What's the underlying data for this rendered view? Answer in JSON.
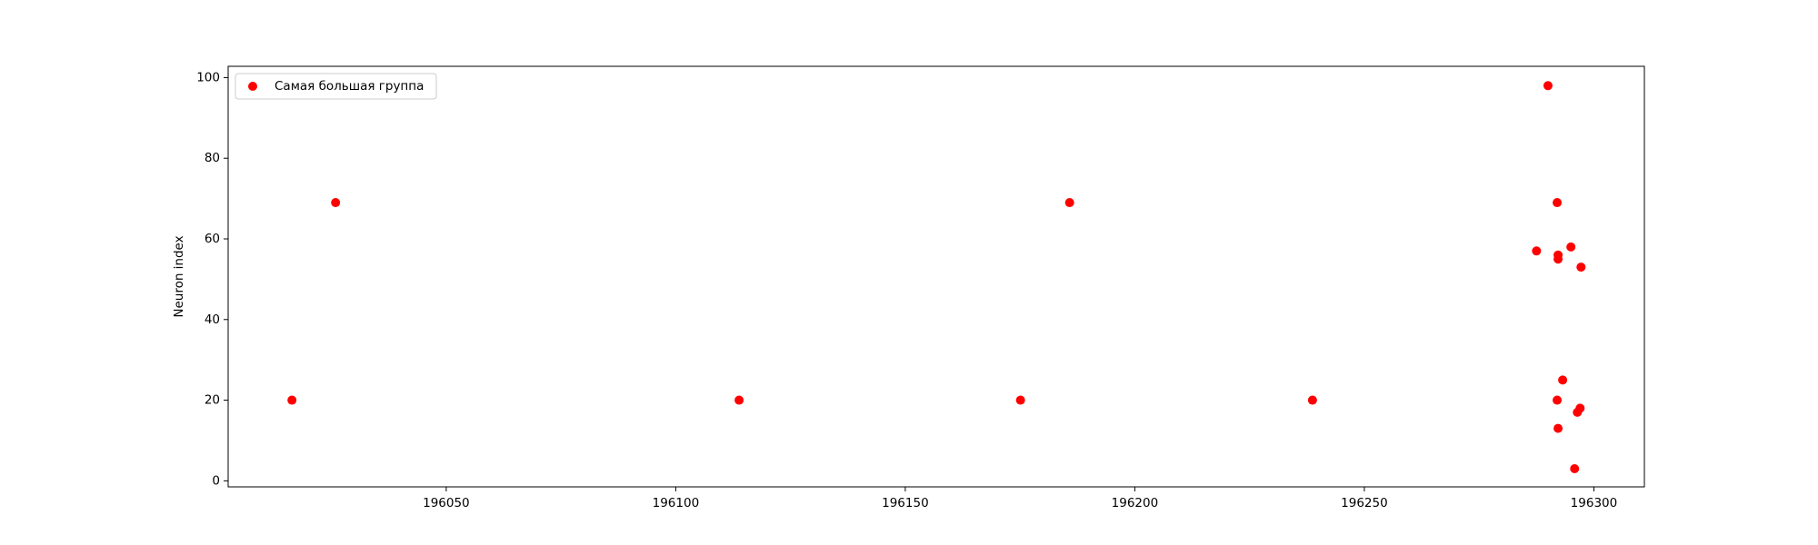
{
  "chart_data": {
    "type": "scatter",
    "title": "",
    "xlabel": "",
    "ylabel": "Neuron index",
    "xlim": [
      196002.5,
      196311
    ],
    "ylim": [
      -1.5,
      102.8
    ],
    "xticks": [
      196050,
      196100,
      196150,
      196200,
      196250,
      196300
    ],
    "yticks": [
      0,
      20,
      40,
      60,
      80,
      100
    ],
    "grid": false,
    "legend": {
      "placement": "top-left",
      "entries": [
        "Самая большая группа"
      ]
    },
    "series": [
      {
        "name": "Самая большая группа",
        "color": "#ff0000",
        "points": [
          {
            "x": 196016.4,
            "y": 20
          },
          {
            "x": 196025.9,
            "y": 69
          },
          {
            "x": 196113.8,
            "y": 20
          },
          {
            "x": 196175.1,
            "y": 20
          },
          {
            "x": 196185.8,
            "y": 69
          },
          {
            "x": 196238.7,
            "y": 20
          },
          {
            "x": 196287.5,
            "y": 57
          },
          {
            "x": 196290.0,
            "y": 98
          },
          {
            "x": 196292.0,
            "y": 69
          },
          {
            "x": 196292.2,
            "y": 56
          },
          {
            "x": 196292.2,
            "y": 55
          },
          {
            "x": 196292.0,
            "y": 20
          },
          {
            "x": 196292.2,
            "y": 13
          },
          {
            "x": 196293.2,
            "y": 25
          },
          {
            "x": 196295.0,
            "y": 58
          },
          {
            "x": 196295.8,
            "y": 3
          },
          {
            "x": 196296.4,
            "y": 17
          },
          {
            "x": 196297.0,
            "y": 18
          },
          {
            "x": 196297.2,
            "y": 53
          }
        ]
      }
    ]
  }
}
